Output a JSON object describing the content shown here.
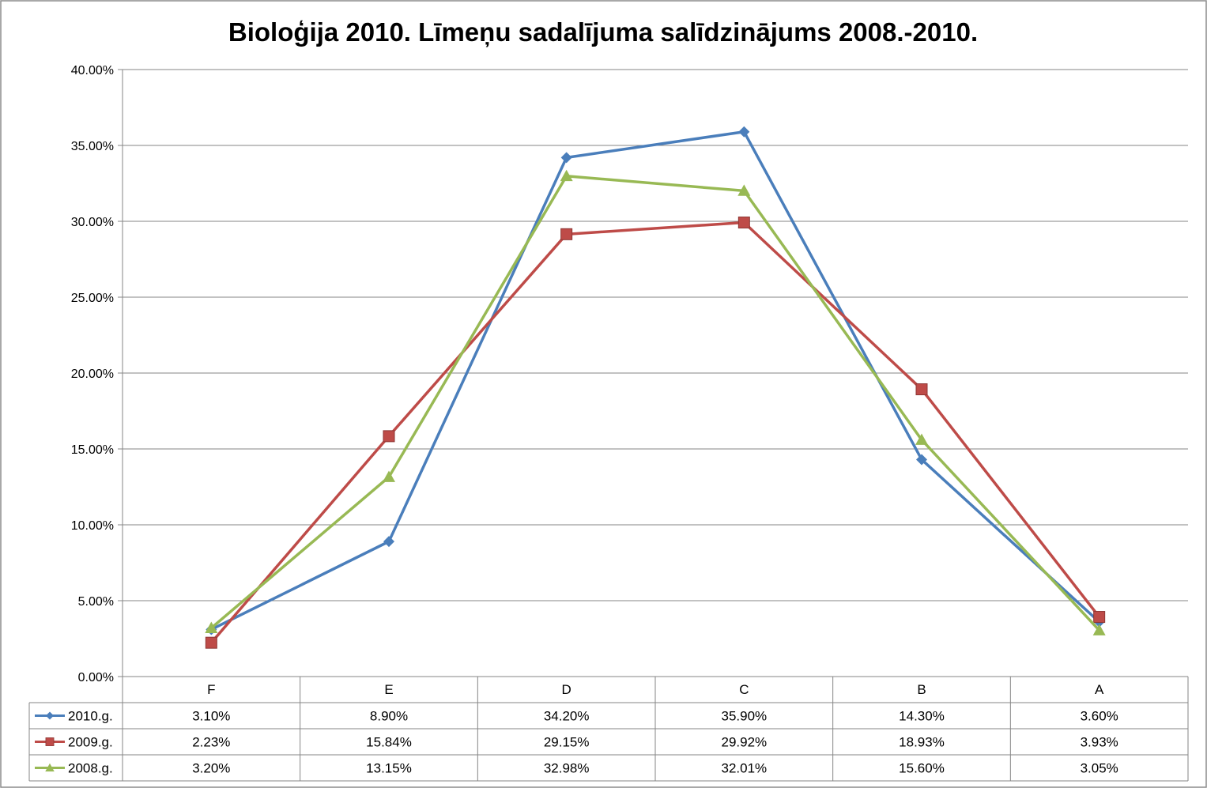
{
  "chart_data": {
    "type": "line",
    "title": "Bioloģija 2010. Līmeņu sadalījuma salīdzinājums 2008.-2010.",
    "categories": [
      "F",
      "E",
      "D",
      "C",
      "B",
      "A"
    ],
    "y_ticks": [
      "0.00%",
      "5.00%",
      "10.00%",
      "15.00%",
      "20.00%",
      "25.00%",
      "30.00%",
      "35.00%",
      "40.00%"
    ],
    "ylim": [
      0,
      40
    ],
    "grid": true,
    "legend": "data-table",
    "series": [
      {
        "name": "2010.g.",
        "color": "#4A7EBB",
        "marker": "diamond",
        "values": [
          3.1,
          8.9,
          34.2,
          35.9,
          14.3,
          3.6
        ],
        "labels": [
          "3.10%",
          "8.90%",
          "34.20%",
          "35.90%",
          "14.30%",
          "3.60%"
        ]
      },
      {
        "name": "2009.g.",
        "color": "#BE4B48",
        "marker": "square",
        "values": [
          2.23,
          15.84,
          29.15,
          29.92,
          18.93,
          3.93
        ],
        "labels": [
          "2.23%",
          "15.84%",
          "29.15%",
          "29.92%",
          "18.93%",
          "3.93%"
        ]
      },
      {
        "name": "2008.g.",
        "color": "#98B954",
        "marker": "triangle",
        "values": [
          3.2,
          13.15,
          32.98,
          32.01,
          15.6,
          3.05
        ],
        "labels": [
          "3.20%",
          "13.15%",
          "32.98%",
          "32.01%",
          "15.60%",
          "3.05%"
        ]
      }
    ]
  }
}
